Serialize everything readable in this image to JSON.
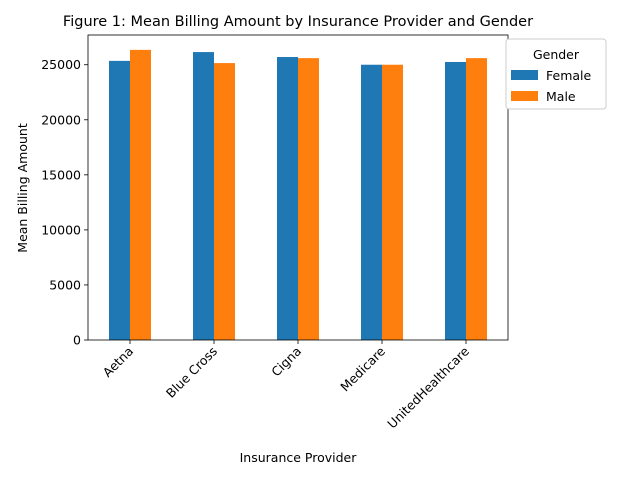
{
  "chart_data": {
    "type": "bar",
    "title": "Figure 1: Mean Billing Amount by Insurance Provider and Gender",
    "xlabel": "Insurance Provider",
    "ylabel": "Mean Billing Amount",
    "categories": [
      "Aetna",
      "Blue Cross",
      "Cigna",
      "Medicare",
      "UnitedHealthcare"
    ],
    "series": [
      {
        "name": "Female",
        "values": [
          25350,
          26150,
          25700,
          25000,
          25250
        ],
        "color": "#1f77b4"
      },
      {
        "name": "Male",
        "values": [
          26350,
          25150,
          25600,
          25000,
          25600
        ],
        "color": "#ff7f0e"
      }
    ],
    "ylim": [
      0,
      27700
    ],
    "yticks": [
      0,
      5000,
      10000,
      15000,
      20000,
      25000
    ],
    "grid": false,
    "legend": {
      "title": "Gender",
      "placement": "upper-right-outside"
    }
  }
}
